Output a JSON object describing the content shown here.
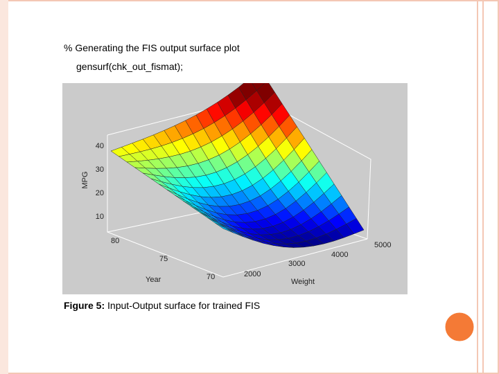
{
  "code": {
    "comment": "% Generating the FIS output surface plot",
    "command": "gensurf(chk_out_fismat);"
  },
  "figure": {
    "z_label": "MPG",
    "x_label": "Year",
    "y_label": "Weight",
    "z_ticks": [
      10,
      20,
      30,
      40
    ],
    "year_ticks": [
      80,
      75,
      70
    ],
    "weight_ticks": [
      2000,
      3000,
      4000,
      5000
    ]
  },
  "caption": {
    "label": "Figure 5:",
    "text": "Input-Output surface for trained FIS"
  }
}
